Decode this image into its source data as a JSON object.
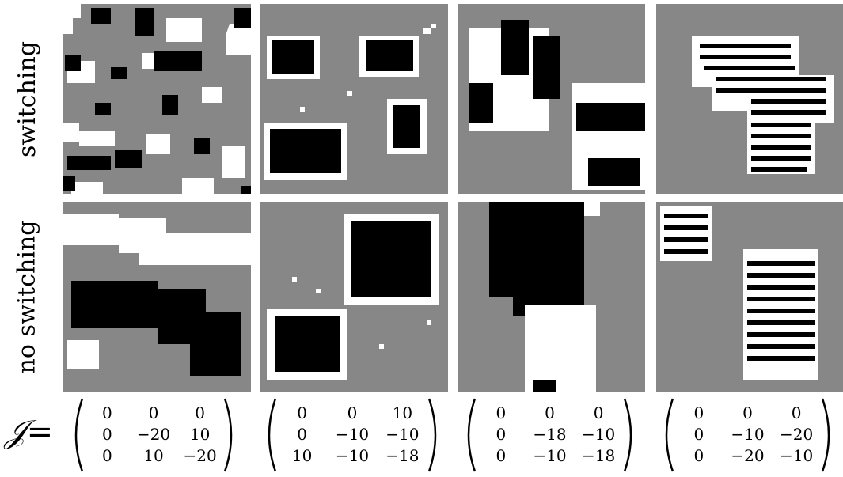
{
  "rows": [
    {
      "label": "switching"
    },
    {
      "label": "no switching"
    }
  ],
  "matrix_label": {
    "symbol": "𝒥",
    "eq": "="
  },
  "matrices": [
    [
      [
        "0",
        "0",
        "0"
      ],
      [
        "0",
        "−20",
        "10"
      ],
      [
        "0",
        "10",
        "−20"
      ]
    ],
    [
      [
        "0",
        "0",
        "10"
      ],
      [
        "0",
        "−10",
        "−10"
      ],
      [
        "10",
        "−10",
        "−18"
      ]
    ],
    [
      [
        "0",
        "0",
        "0"
      ],
      [
        "0",
        "−18",
        "−10"
      ],
      [
        "0",
        "−10",
        "−18"
      ]
    ],
    [
      [
        "0",
        "0",
        "0"
      ],
      [
        "0",
        "−10",
        "−20"
      ],
      [
        "0",
        "−20",
        "−10"
      ]
    ]
  ],
  "colors": {
    "background": "#878787",
    "black": "#000000",
    "white": "#ffffff"
  }
}
